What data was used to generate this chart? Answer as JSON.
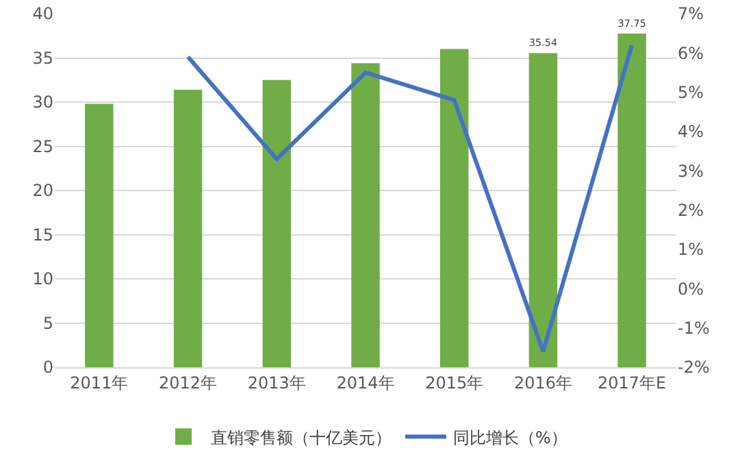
{
  "chart_data": {
    "type": "bar",
    "categories": [
      "2011年",
      "2012年",
      "2013年",
      "2014年",
      "2015年",
      "2016年",
      "2017年E"
    ],
    "series": [
      {
        "name": "直销零售额（十亿美元）",
        "color": "#70ad47",
        "values": [
          29.8,
          31.4,
          32.5,
          34.4,
          36.0,
          35.54,
          37.75
        ],
        "value_labels": [
          null,
          null,
          null,
          null,
          null,
          "35.54",
          "37.75"
        ]
      },
      {
        "name": "同比增长（%）",
        "type": "line",
        "axis": "y2",
        "color": "#4472c4",
        "values": [
          null,
          5.9,
          3.3,
          5.5,
          4.8,
          -1.6,
          6.2
        ]
      }
    ],
    "ylim": [
      0,
      40
    ],
    "yticks": [
      0,
      5,
      10,
      15,
      20,
      25,
      30,
      35,
      40
    ],
    "y2lim": [
      -2,
      7
    ],
    "y2ticks": [
      {
        "value": -2,
        "label": "-2%"
      },
      {
        "value": -1,
        "label": "-1%"
      },
      {
        "value": 0,
        "label": "0%"
      },
      {
        "value": 1,
        "label": "1%"
      },
      {
        "value": 2,
        "label": "2%"
      },
      {
        "value": 3,
        "label": "3%"
      },
      {
        "value": 4,
        "label": "4%"
      },
      {
        "value": 5,
        "label": "5%"
      },
      {
        "value": 6,
        "label": "6%"
      },
      {
        "value": 7,
        "label": "7%"
      }
    ],
    "grid": "y",
    "legend": "bottom",
    "marker": "none",
    "line_style": "solid"
  }
}
